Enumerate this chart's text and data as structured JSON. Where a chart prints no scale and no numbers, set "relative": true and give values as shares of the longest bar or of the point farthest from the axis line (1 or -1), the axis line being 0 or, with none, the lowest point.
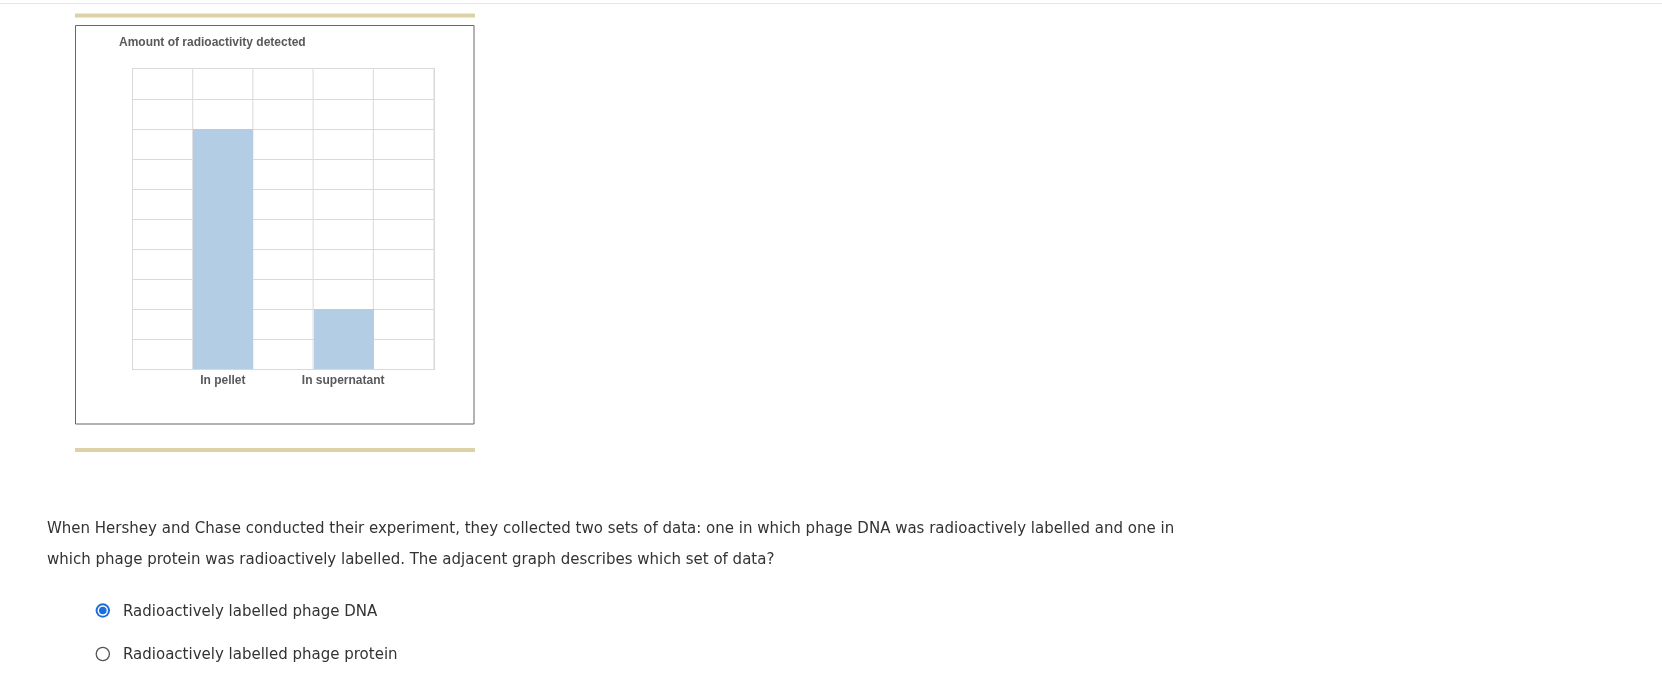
{
  "chart_data": {
    "type": "bar",
    "title": "Amount of radioactivity detected",
    "categories": [
      "In pellet",
      "In supernatant"
    ],
    "values": [
      1,
      0.25
    ],
    "color": "#b3cde4",
    "relative": true,
    "grid": true,
    "annotations": [
      "When Hershey and Chase conducted their experiment, they collected two sets of data: one in which phage DNA was radioactively labelled and one in which phage protein was radioactively labelled. The adjacent graph describes which set of data?",
      "Radioactively labelled phage DNA",
      "Radioactively labelled phage protein"
    ]
  }
}
